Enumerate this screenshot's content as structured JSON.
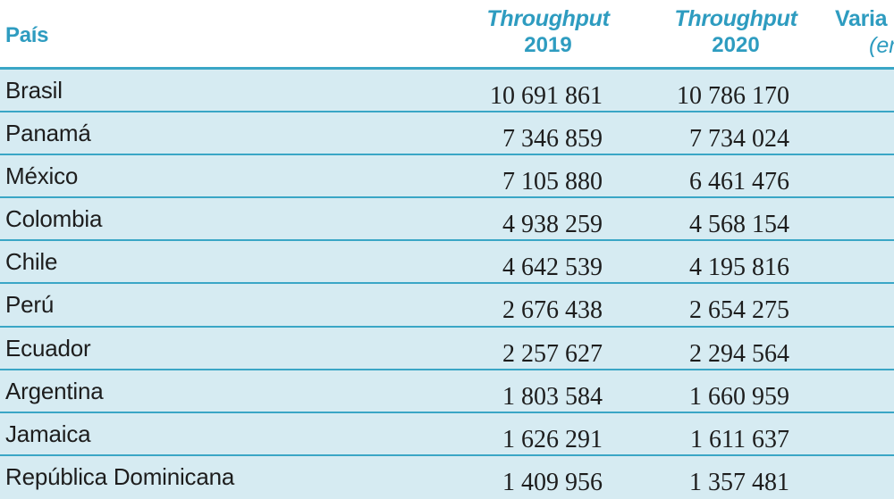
{
  "header": {
    "country": "País",
    "col2019_top": "Throughput",
    "col2019_year": "2019",
    "col2020_top": "Throughput",
    "col2020_year": "2020",
    "variation_top": "Varia",
    "variation_sub": "(er"
  },
  "rows": [
    {
      "country": "Brasil",
      "v2019": "10 691 861",
      "v2020": "10 786 170"
    },
    {
      "country": "Panamá",
      "v2019": "7 346 859",
      "v2020": "7 734 024"
    },
    {
      "country": "México",
      "v2019": "7 105 880",
      "v2020": "6 461 476"
    },
    {
      "country": "Colombia",
      "v2019": "4 938 259",
      "v2020": "4 568 154"
    },
    {
      "country": "Chile",
      "v2019": "4 642 539",
      "v2020": "4 195 816"
    },
    {
      "country": "Perú",
      "v2019": "2 676 438",
      "v2020": "2 654 275"
    },
    {
      "country": "Ecuador",
      "v2019": "2 257 627",
      "v2020": "2 294 564"
    },
    {
      "country": "Argentina",
      "v2019": "1 803 584",
      "v2020": "1 660 959"
    },
    {
      "country": "Jamaica",
      "v2019": "1 626 291",
      "v2020": "1 611 637"
    },
    {
      "country": "República Dominicana",
      "v2019": "1 409 956",
      "v2020": "1 357 481"
    }
  ]
}
